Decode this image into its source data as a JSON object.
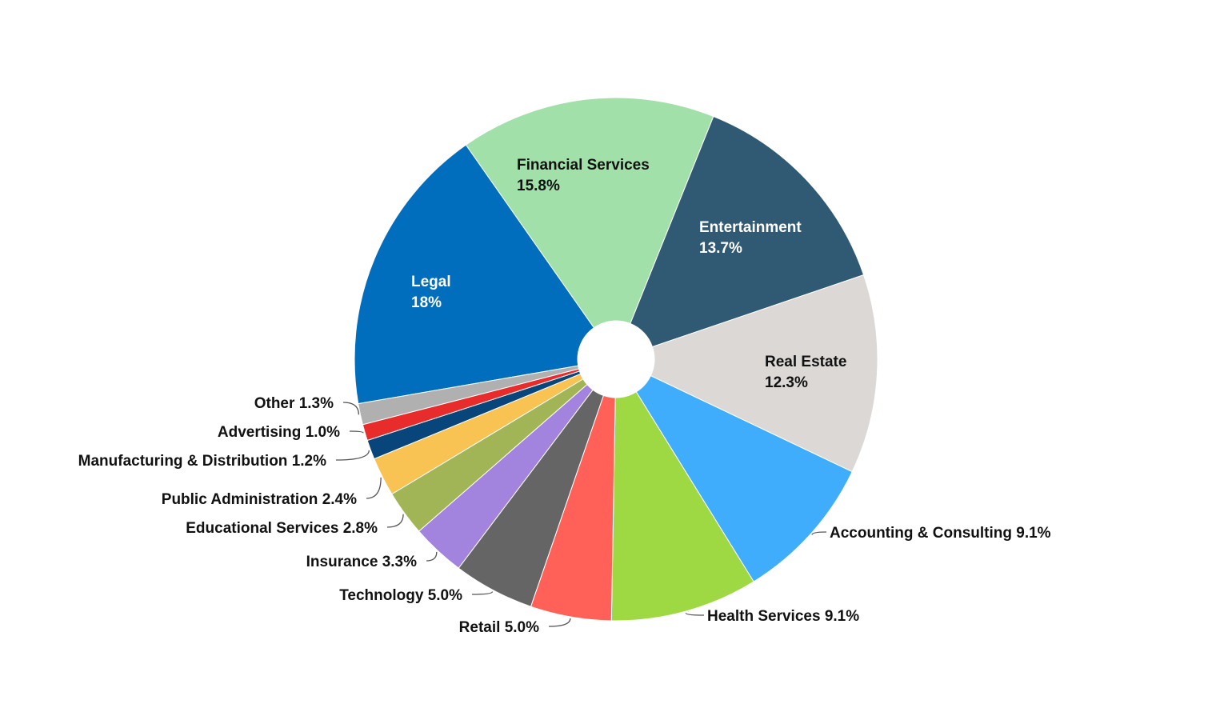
{
  "chart_data": {
    "type": "donut",
    "categories": [
      "Legal",
      "Financial Services",
      "Entertainment",
      "Real Estate",
      "Accounting & Consulting",
      "Health Services",
      "Retail",
      "Technology",
      "Insurance",
      "Educational Services",
      "Public Administration",
      "Manufacturing & Distribution",
      "Advertising",
      "Other"
    ],
    "values": [
      18,
      15.8,
      13.7,
      12.3,
      9.1,
      9.1,
      5.0,
      5.0,
      3.3,
      2.8,
      2.4,
      1.2,
      1.0,
      1.3
    ],
    "value_labels": [
      "18%",
      "15.8%",
      "13.7%",
      "12.3%",
      "9.1%",
      "9.1%",
      "5.0%",
      "5.0%",
      "3.3%",
      "2.8%",
      "2.4%",
      "1.2%",
      "1.0%",
      "1.3%"
    ],
    "colors": [
      "#006dbd",
      "#a1e0a9",
      "#305a73",
      "#dcd8d6",
      "#40adfc",
      "#9ed944",
      "#ff6058",
      "#656565",
      "#a283dd",
      "#a2b556",
      "#f8c352",
      "#07457a",
      "#e82c2b",
      "#b0b0b0"
    ]
  }
}
